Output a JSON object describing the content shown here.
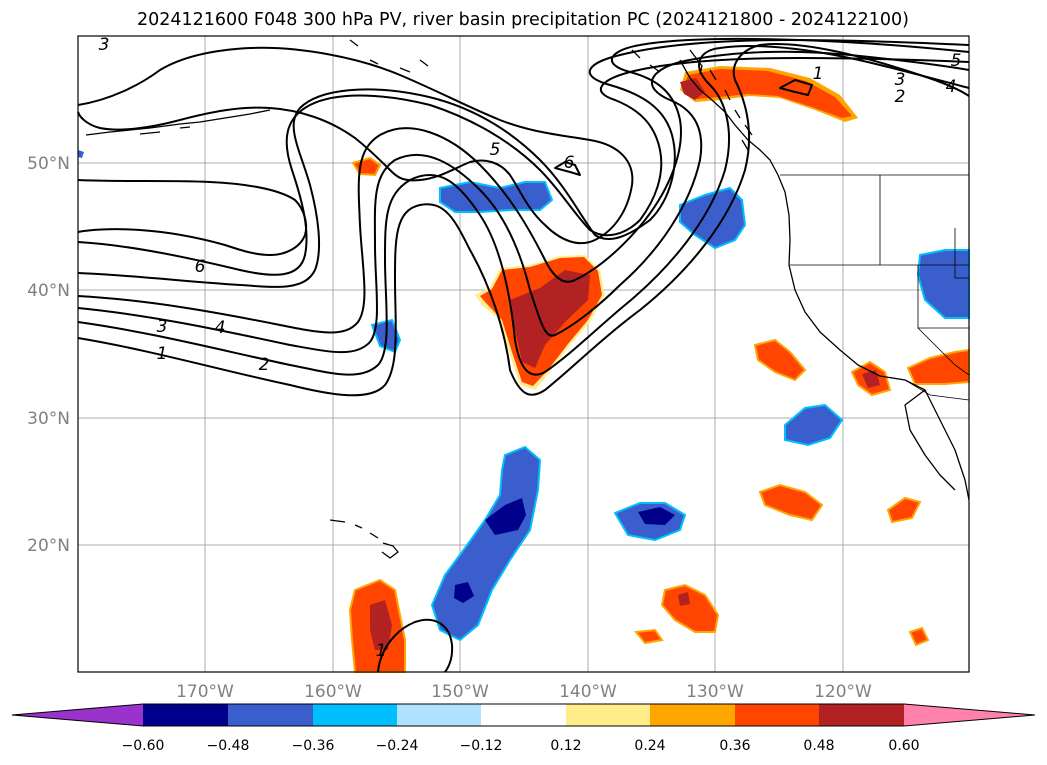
{
  "title": "2024121600 F048 300 hPa PV, river basin precipitation PC (2024121800 - 2024122100)",
  "lat_labels": [
    "50°N",
    "40°N",
    "30°N",
    "20°N"
  ],
  "lon_labels": [
    "170°W",
    "160°W",
    "150°W",
    "140°W",
    "130°W",
    "120°W"
  ],
  "contour_labels": [
    "3",
    "5",
    "6",
    "1",
    "3",
    "4",
    "2",
    "5",
    "6",
    "3",
    "4",
    "1",
    "2",
    "1"
  ],
  "colorbar": {
    "ticks": [
      "−0.60",
      "−0.48",
      "−0.36",
      "−0.24",
      "−0.12",
      "0.12",
      "0.24",
      "0.36",
      "0.48",
      "0.60"
    ],
    "colors": [
      "#9933cc",
      "#00008b",
      "#3a5fcd",
      "#00bfff",
      "#b0e2ff",
      "#ffffff",
      "#ffec8b",
      "#ffa500",
      "#ff4500",
      "#b22222",
      "#ff82ab"
    ]
  },
  "colors": {
    "pos_light": "#ffec8b",
    "pos_mid": "#ffa500",
    "pos_strong": "#ff4500",
    "pos_max": "#b22222",
    "neg_light": "#b0e2ff",
    "neg_mid": "#00bfff",
    "neg_strong": "#3a5fcd",
    "neg_max": "#00008b"
  }
}
